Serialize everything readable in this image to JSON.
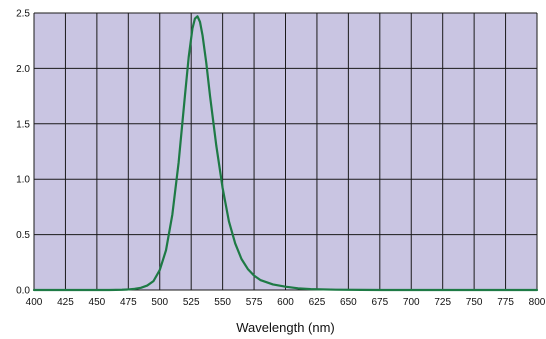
{
  "chart_data": {
    "type": "line",
    "title": "",
    "xlabel": "Wavelength (nm)",
    "ylabel": "",
    "xlim": [
      400,
      800
    ],
    "ylim": [
      0.0,
      2.5
    ],
    "grid": true,
    "background_color": "#c9c5e2",
    "grid_color": "#1a1a1a",
    "x_ticks": [
      400,
      425,
      450,
      475,
      500,
      525,
      550,
      575,
      600,
      625,
      650,
      675,
      700,
      725,
      750,
      775,
      800
    ],
    "x_tick_labels": [
      "400",
      "425",
      "450",
      "475",
      "500",
      "525",
      "550",
      "575",
      "600",
      "625",
      "650",
      "675",
      "700",
      "725",
      "750",
      "775",
      "800"
    ],
    "y_ticks": [
      0.0,
      0.5,
      1.0,
      1.5,
      2.0,
      2.5
    ],
    "y_tick_labels": [
      "0.0",
      "0.5",
      "1.0",
      "1.5",
      "2.0",
      "2.5"
    ],
    "series": [
      {
        "color": "#1e7a45",
        "x": [
          400,
          460,
          470,
          475,
          480,
          485,
          490,
          495,
          500,
          505,
          510,
          515,
          520,
          523,
          526,
          528,
          530,
          532,
          534,
          537,
          540,
          545,
          550,
          555,
          560,
          565,
          570,
          575,
          580,
          590,
          600,
          610,
          620,
          640,
          660,
          680,
          800
        ],
        "y": [
          0.0,
          0.0,
          0.002,
          0.005,
          0.01,
          0.02,
          0.04,
          0.08,
          0.18,
          0.36,
          0.68,
          1.15,
          1.75,
          2.1,
          2.36,
          2.45,
          2.47,
          2.42,
          2.3,
          2.05,
          1.75,
          1.3,
          0.92,
          0.62,
          0.42,
          0.28,
          0.19,
          0.13,
          0.09,
          0.05,
          0.03,
          0.015,
          0.008,
          0.003,
          0.001,
          0.0,
          0.0
        ]
      }
    ]
  }
}
